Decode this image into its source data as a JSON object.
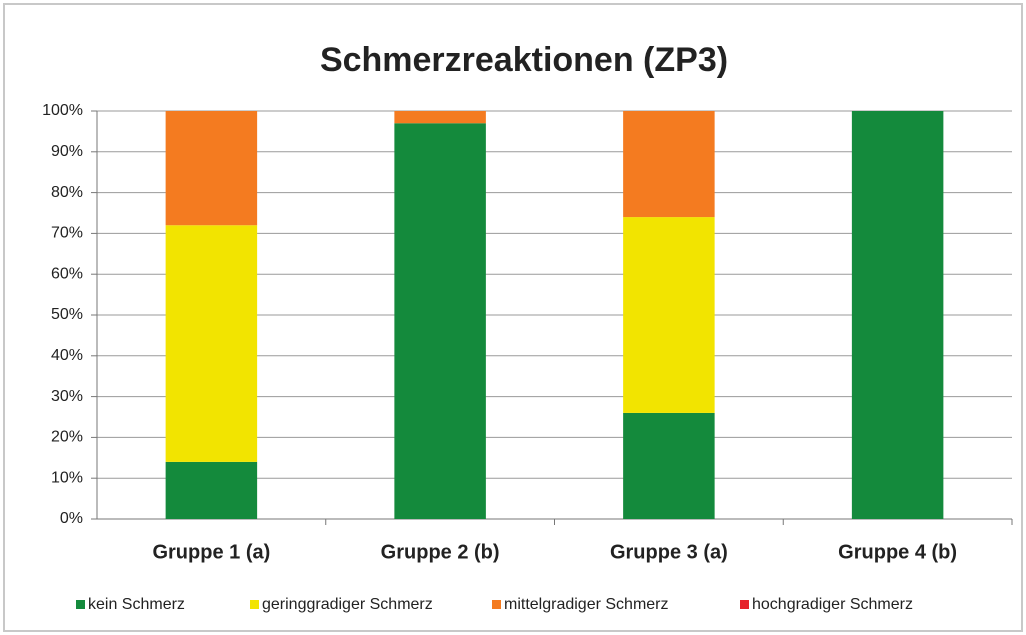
{
  "chart_data": {
    "type": "stacked_bar",
    "title": "Schmerzreaktionen (ZP3)",
    "categories": [
      "Gruppe 1 (a)",
      "Gruppe 2 (b)",
      "Gruppe 3 (a)",
      "Gruppe 4 (b)"
    ],
    "series": [
      {
        "name": "kein Schmerz",
        "color": "#148a3c",
        "values": [
          14,
          97,
          26,
          100
        ]
      },
      {
        "name": "geringgradiger Schmerz",
        "color": "#f2e400",
        "values": [
          58,
          0,
          48,
          0
        ]
      },
      {
        "name": "mittelgradiger Schmerz",
        "color": "#f47b20",
        "values": [
          28,
          3,
          26,
          0
        ]
      },
      {
        "name": "hochgradiger Schmerz",
        "color": "#e62129",
        "values": [
          0,
          0,
          0,
          0
        ]
      }
    ],
    "ylim": [
      0,
      100
    ],
    "yticks": [
      {
        "value": 0,
        "label": "0%"
      },
      {
        "value": 10,
        "label": "10%"
      },
      {
        "value": 20,
        "label": "20%"
      },
      {
        "value": 30,
        "label": "30%"
      },
      {
        "value": 40,
        "label": "40%"
      },
      {
        "value": 50,
        "label": "50%"
      },
      {
        "value": 60,
        "label": "60%"
      },
      {
        "value": 70,
        "label": "70%"
      },
      {
        "value": 80,
        "label": "80%"
      },
      {
        "value": 90,
        "label": "90%"
      },
      {
        "value": 100,
        "label": "100%"
      }
    ],
    "grid": true,
    "legend": "bottom"
  }
}
